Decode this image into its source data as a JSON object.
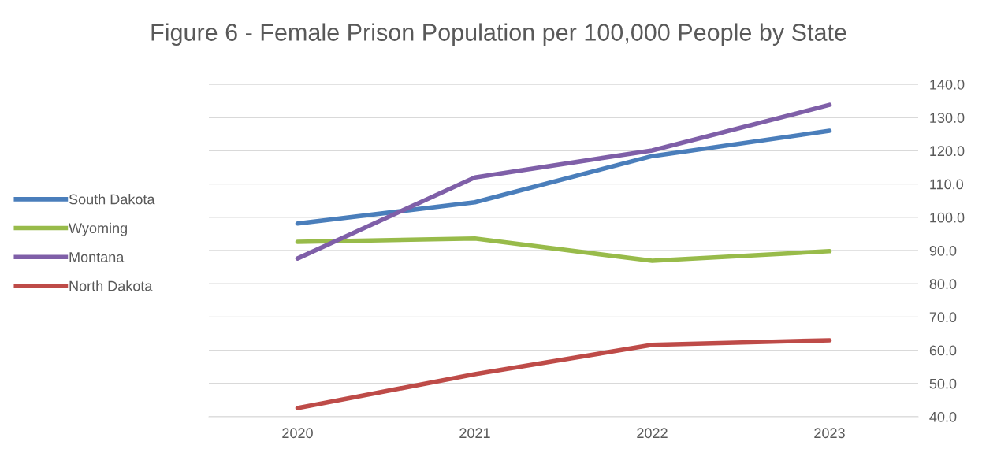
{
  "chart_data": {
    "type": "line",
    "title": "Figure 6 - Female Prison Population per 100,000 People by State",
    "categories": [
      "2020",
      "2021",
      "2022",
      "2023"
    ],
    "series": [
      {
        "name": "South Dakota",
        "color": "#4a7ebb",
        "values": [
          98.1,
          104.5,
          118.4,
          126.0
        ]
      },
      {
        "name": "Wyoming",
        "color": "#98bb4a",
        "values": [
          92.6,
          93.6,
          86.9,
          89.8
        ]
      },
      {
        "name": "Montana",
        "color": "#7f5fa8",
        "values": [
          87.6,
          112.0,
          120.1,
          133.8
        ]
      },
      {
        "name": "North Dakota",
        "color": "#be4b48",
        "values": [
          42.6,
          52.8,
          61.6,
          63.0
        ]
      }
    ],
    "ylim": [
      40,
      140
    ],
    "yticks": [
      {
        "value": 40,
        "label": "40.0"
      },
      {
        "value": 50,
        "label": "50.0"
      },
      {
        "value": 60,
        "label": "60.0"
      },
      {
        "value": 70,
        "label": "70.0"
      },
      {
        "value": 80,
        "label": "80.0"
      },
      {
        "value": 90,
        "label": "90.0"
      },
      {
        "value": 100,
        "label": "100.0"
      },
      {
        "value": 110,
        "label": "110.0"
      },
      {
        "value": 120,
        "label": "120.0"
      },
      {
        "value": 130,
        "label": "130.0"
      },
      {
        "value": 140,
        "label": "140.0"
      }
    ],
    "grid": "y",
    "legend": "left",
    "marker": "none",
    "line_style": "solid"
  }
}
